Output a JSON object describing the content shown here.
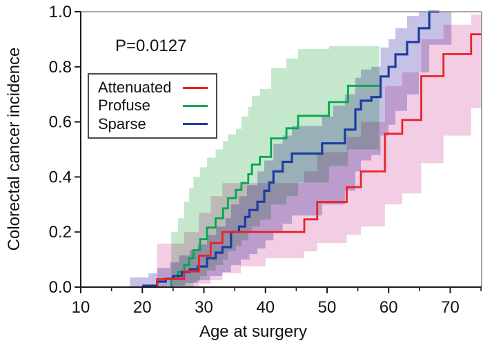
{
  "annotation": "P=0.0127",
  "legend": {
    "position": "upper-left",
    "items": [
      {
        "label": "Attenuated",
        "color": "#e8232a"
      },
      {
        "label": "Profuse",
        "color": "#00a84f"
      },
      {
        "label": "Sparse",
        "color": "#1c3c9e"
      }
    ]
  },
  "chart_data": {
    "type": "line",
    "subtype": "kaplan-meier-step-curves-with-confidence-bands",
    "title": "",
    "xlabel": "Age at surgery",
    "ylabel": "Colorectal cancer incidence",
    "annotation": "P=0.0127",
    "xlim": [
      10,
      75.1
    ],
    "ylim": [
      0,
      1.0
    ],
    "x_major_ticks": [
      10,
      20,
      30,
      40,
      50,
      60,
      70
    ],
    "x_tick_labels": [
      "10",
      "20",
      "30",
      "40",
      "50",
      "60",
      "70"
    ],
    "x_minor_ticks": [
      15,
      25,
      35,
      45,
      55,
      65,
      75
    ],
    "y_ticks": [
      0.0,
      0.2,
      0.4,
      0.6,
      0.8,
      1.0
    ],
    "y_tick_labels": [
      "0.0",
      "0.2",
      "0.4",
      "0.6",
      "0.8",
      "1.0"
    ],
    "grid": false,
    "legend_position": "upper-left",
    "series": [
      {
        "name": "Attenuated",
        "color": "#e8232a",
        "width": 2.8,
        "z": 3,
        "end_age": 75.1,
        "steps": [
          [
            22.4,
            0
          ],
          [
            22.4,
            0.029
          ],
          [
            26.8,
            0.057
          ],
          [
            29.2,
            0.114
          ],
          [
            31.1,
            0.16
          ],
          [
            33,
            0.2
          ],
          [
            46.3,
            0.246
          ],
          [
            48.4,
            0.309
          ],
          [
            53.2,
            0.363
          ],
          [
            55.5,
            0.42
          ],
          [
            59.4,
            0.557
          ],
          [
            62.2,
            0.607
          ],
          [
            65.3,
            0.766
          ],
          [
            68.9,
            0.846
          ],
          [
            73.4,
            0.918
          ]
        ],
        "band_color": "#f3cde4",
        "band": {
          "end_age": 75.1,
          "upper": [
            [
              22.4,
              0.158
            ],
            [
              26.8,
              0.2
            ],
            [
              29.2,
              0.27
            ],
            [
              31.1,
              0.33
            ],
            [
              33,
              0.378
            ],
            [
              46.3,
              0.42
            ],
            [
              48.4,
              0.49
            ],
            [
              53.2,
              0.545
            ],
            [
              55.5,
              0.6
            ],
            [
              59.4,
              0.73
            ],
            [
              62.2,
              0.78
            ],
            [
              65.3,
              0.9
            ],
            [
              68.9,
              0.953
            ],
            [
              73.4,
              0.99
            ]
          ],
          "lower": [
            [
              22.4,
              0
            ],
            [
              29.2,
              0.012
            ],
            [
              31.1,
              0.025
            ],
            [
              33,
              0.05
            ],
            [
              36,
              0.075
            ],
            [
              40,
              0.105
            ],
            [
              46.3,
              0.13
            ],
            [
              48.4,
              0.16
            ],
            [
              53.2,
              0.19
            ],
            [
              55.5,
              0.22
            ],
            [
              59.4,
              0.3
            ],
            [
              62.2,
              0.34
            ],
            [
              65.3,
              0.45
            ],
            [
              68.9,
              0.55
            ],
            [
              73.4,
              0.65
            ]
          ]
        }
      },
      {
        "name": "Profuse",
        "color": "#00a84f",
        "width": 2.8,
        "z": 1,
        "end_age": 58.5,
        "steps": [
          [
            24.7,
            0
          ],
          [
            24.7,
            0.03
          ],
          [
            25.8,
            0.055
          ],
          [
            26.8,
            0.08
          ],
          [
            27.6,
            0.105
          ],
          [
            28.3,
            0.134
          ],
          [
            29.4,
            0.174
          ],
          [
            30.5,
            0.216
          ],
          [
            31.9,
            0.25
          ],
          [
            33.1,
            0.286
          ],
          [
            33.9,
            0.323
          ],
          [
            35.2,
            0.353
          ],
          [
            36.1,
            0.378
          ],
          [
            37.2,
            0.41
          ],
          [
            37.8,
            0.445
          ],
          [
            39.1,
            0.473
          ],
          [
            40.9,
            0.54
          ],
          [
            43.4,
            0.577
          ],
          [
            45.3,
            0.622
          ],
          [
            50.3,
            0.672
          ],
          [
            53.4,
            0.731
          ]
        ],
        "band_color": "#c5e8cd",
        "band": {
          "end_age": 58.5,
          "upper": [
            [
              24.7,
              0.2
            ],
            [
              25.8,
              0.25
            ],
            [
              26.8,
              0.31
            ],
            [
              27.6,
              0.36
            ],
            [
              28.3,
              0.4
            ],
            [
              29.4,
              0.435
            ],
            [
              30.5,
              0.47
            ],
            [
              31.9,
              0.5
            ],
            [
              33.1,
              0.53
            ],
            [
              33.9,
              0.555
            ],
            [
              35.2,
              0.575
            ],
            [
              36.1,
              0.62
            ],
            [
              37.2,
              0.655
            ],
            [
              37.8,
              0.695
            ],
            [
              39.1,
              0.72
            ],
            [
              40.9,
              0.795
            ],
            [
              43.4,
              0.83
            ],
            [
              45.3,
              0.865
            ],
            [
              50.3,
              0.875
            ]
          ],
          "lower": [
            [
              24.7,
              0
            ],
            [
              28.3,
              0.02
            ],
            [
              29.4,
              0.04
            ],
            [
              30.5,
              0.06
            ],
            [
              31.9,
              0.08
            ],
            [
              33.1,
              0.1
            ],
            [
              33.9,
              0.13
            ],
            [
              35.2,
              0.15
            ],
            [
              36.1,
              0.17
            ],
            [
              37.2,
              0.2
            ],
            [
              37.8,
              0.22
            ],
            [
              39.1,
              0.245
            ],
            [
              40.9,
              0.3
            ],
            [
              43.4,
              0.33
            ],
            [
              45.3,
              0.38
            ],
            [
              50.3,
              0.44
            ],
            [
              53.4,
              0.5
            ]
          ]
        }
      },
      {
        "name": "Sparse",
        "color": "#1c3c9e",
        "width": 3.2,
        "z": 2,
        "end_age": 68.2,
        "steps": [
          [
            20,
            0.005
          ],
          [
            22.4,
            0.02
          ],
          [
            23.8,
            0.03
          ],
          [
            25,
            0.04
          ],
          [
            26.4,
            0.055
          ],
          [
            27.7,
            0.065
          ],
          [
            29,
            0.075
          ],
          [
            30.5,
            0.105
          ],
          [
            31.9,
            0.125
          ],
          [
            33,
            0.145
          ],
          [
            34.4,
            0.2
          ],
          [
            35.7,
            0.22
          ],
          [
            36.7,
            0.255
          ],
          [
            37.4,
            0.28
          ],
          [
            38.7,
            0.31
          ],
          [
            39.8,
            0.35
          ],
          [
            40.6,
            0.38
          ],
          [
            41.3,
            0.42
          ],
          [
            42.8,
            0.455
          ],
          [
            44.3,
            0.485
          ],
          [
            49.2,
            0.522
          ],
          [
            52.9,
            0.572
          ],
          [
            54.6,
            0.645
          ],
          [
            55.5,
            0.677
          ],
          [
            57.2,
            0.69
          ],
          [
            58.7,
            0.765
          ],
          [
            60,
            0.8
          ],
          [
            61.1,
            0.845
          ],
          [
            63,
            0.89
          ],
          [
            64.9,
            0.94
          ],
          [
            66.6,
            1.0
          ]
        ],
        "band_color": "#c6c2e6",
        "band": {
          "end_age": 70.2,
          "upper": [
            [
              18,
              0.035
            ],
            [
              21,
              0.05
            ],
            [
              22.4,
              0.07
            ],
            [
              24.5,
              0.09
            ],
            [
              26,
              0.115
            ],
            [
              27.7,
              0.135
            ],
            [
              29,
              0.155
            ],
            [
              30.5,
              0.19
            ],
            [
              32,
              0.22
            ],
            [
              33.5,
              0.25
            ],
            [
              34.4,
              0.3
            ],
            [
              35.7,
              0.33
            ],
            [
              37,
              0.37
            ],
            [
              38.7,
              0.42
            ],
            [
              39.8,
              0.46
            ],
            [
              41.3,
              0.52
            ],
            [
              42.8,
              0.55
            ],
            [
              44.3,
              0.585
            ],
            [
              49.2,
              0.62
            ],
            [
              51,
              0.66
            ],
            [
              52.9,
              0.7
            ],
            [
              54.6,
              0.76
            ],
            [
              55.5,
              0.79
            ],
            [
              57.2,
              0.8
            ],
            [
              58.7,
              0.87
            ],
            [
              60,
              0.9
            ],
            [
              61.1,
              0.94
            ],
            [
              63,
              0.985
            ],
            [
              64.9,
              1.0
            ]
          ],
          "lower": [
            [
              18,
              0
            ],
            [
              24,
              0.005
            ],
            [
              27,
              0.015
            ],
            [
              29,
              0.025
            ],
            [
              31,
              0.04
            ],
            [
              33,
              0.055
            ],
            [
              34.4,
              0.08
            ],
            [
              36,
              0.1
            ],
            [
              37.4,
              0.12
            ],
            [
              38.7,
              0.14
            ],
            [
              40,
              0.17
            ],
            [
              41.3,
              0.2
            ],
            [
              42.8,
              0.23
            ],
            [
              44.3,
              0.26
            ],
            [
              49.2,
              0.3
            ],
            [
              52.9,
              0.35
            ],
            [
              54.6,
              0.42
            ],
            [
              55.5,
              0.46
            ],
            [
              57.2,
              0.48
            ],
            [
              58.7,
              0.55
            ],
            [
              60,
              0.59
            ],
            [
              61.1,
              0.64
            ],
            [
              63,
              0.7
            ],
            [
              64.9,
              0.78
            ],
            [
              66.6,
              0.88
            ]
          ]
        }
      }
    ]
  }
}
